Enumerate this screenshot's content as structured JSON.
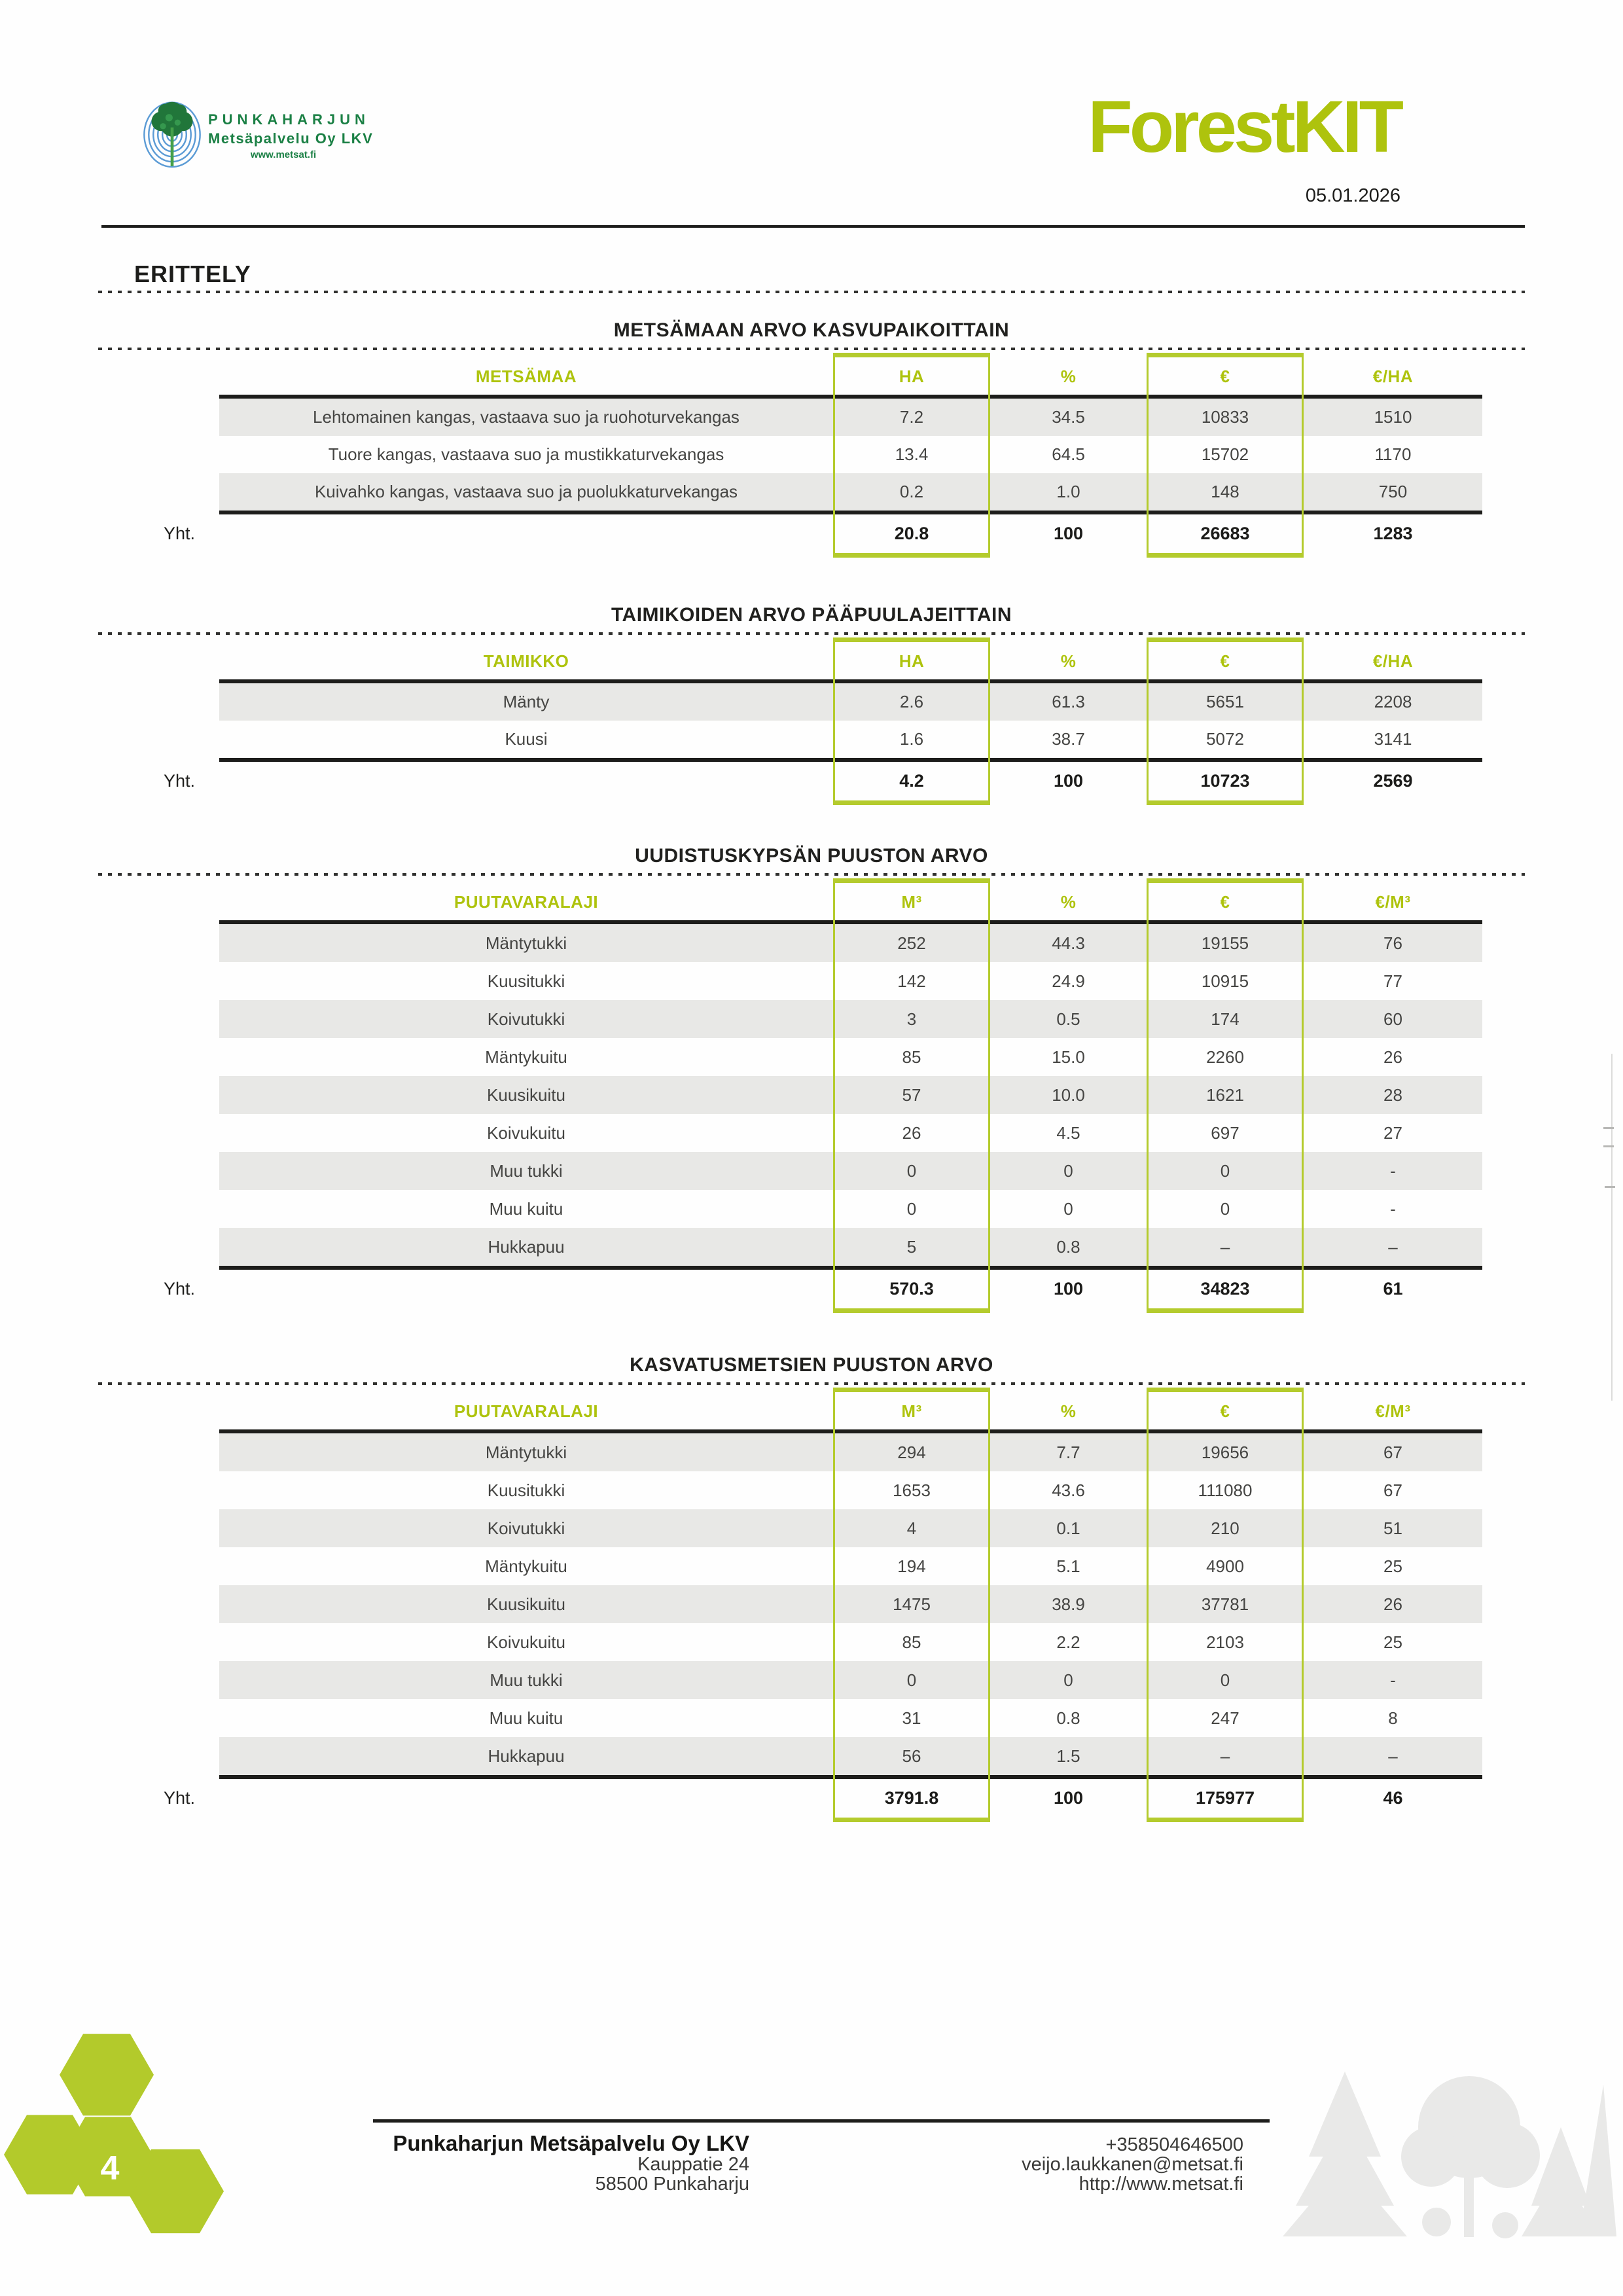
{
  "header": {
    "company_logo": {
      "name": "PUNKAHARJUN",
      "subtitle": "Metsäpalvelu Oy LKV",
      "url": "www.metsat.fi"
    },
    "brand": "ForestKIT",
    "date": "05.01.2026"
  },
  "page_heading": "ERITTELY",
  "sections": [
    {
      "title": "METSÄMAAN ARVO KASVUPAIKOITTAIN",
      "columns": [
        "METSÄMAA",
        "HA",
        "%",
        "€",
        "€/HA"
      ],
      "rows": [
        [
          "Lehtomainen kangas, vastaava suo ja ruohoturvekangas",
          "7.2",
          "34.5",
          "10833",
          "1510"
        ],
        [
          "Tuore kangas, vastaava suo ja mustikkaturvekangas",
          "13.4",
          "64.5",
          "15702",
          "1170"
        ],
        [
          "Kuivahko kangas, vastaava suo ja puolukkaturvekangas",
          "0.2",
          "1.0",
          "148",
          "750"
        ]
      ],
      "total_label": "Yht.",
      "totals": [
        "20.8",
        "100",
        "26683",
        "1283"
      ]
    },
    {
      "title": "TAIMIKOIDEN ARVO PÄÄPUULAJEITTAIN",
      "columns": [
        "TAIMIKKO",
        "HA",
        "%",
        "€",
        "€/HA"
      ],
      "rows": [
        [
          "Mänty",
          "2.6",
          "61.3",
          "5651",
          "2208"
        ],
        [
          "Kuusi",
          "1.6",
          "38.7",
          "5072",
          "3141"
        ]
      ],
      "total_label": "Yht.",
      "totals": [
        "4.2",
        "100",
        "10723",
        "2569"
      ]
    },
    {
      "title": "UUDISTUSKYPSÄN PUUSTON ARVO",
      "columns": [
        "PUUTAVARALAJI",
        "M³",
        "%",
        "€",
        "€/M³"
      ],
      "rows": [
        [
          "Mäntytukki",
          "252",
          "44.3",
          "19155",
          "76"
        ],
        [
          "Kuusitukki",
          "142",
          "24.9",
          "10915",
          "77"
        ],
        [
          "Koivutukki",
          "3",
          "0.5",
          "174",
          "60"
        ],
        [
          "Mäntykuitu",
          "85",
          "15.0",
          "2260",
          "26"
        ],
        [
          "Kuusikuitu",
          "57",
          "10.0",
          "1621",
          "28"
        ],
        [
          "Koivukuitu",
          "26",
          "4.5",
          "697",
          "27"
        ],
        [
          "Muu tukki",
          "0",
          "0",
          "0",
          "-"
        ],
        [
          "Muu kuitu",
          "0",
          "0",
          "0",
          "-"
        ],
        [
          "Hukkapuu",
          "5",
          "0.8",
          "–",
          "–"
        ]
      ],
      "total_label": "Yht.",
      "totals": [
        "570.3",
        "100",
        "34823",
        "61"
      ]
    },
    {
      "title": "KASVATUSMETSIEN PUUSTON ARVO",
      "columns": [
        "PUUTAVARALAJI",
        "M³",
        "%",
        "€",
        "€/M³"
      ],
      "rows": [
        [
          "Mäntytukki",
          "294",
          "7.7",
          "19656",
          "67"
        ],
        [
          "Kuusitukki",
          "1653",
          "43.6",
          "111080",
          "67"
        ],
        [
          "Koivutukki",
          "4",
          "0.1",
          "210",
          "51"
        ],
        [
          "Mäntykuitu",
          "194",
          "5.1",
          "4900",
          "25"
        ],
        [
          "Kuusikuitu",
          "1475",
          "38.9",
          "37781",
          "26"
        ],
        [
          "Koivukuitu",
          "85",
          "2.2",
          "2103",
          "25"
        ],
        [
          "Muu tukki",
          "0",
          "0",
          "0",
          "-"
        ],
        [
          "Muu kuitu",
          "31",
          "0.8",
          "247",
          "8"
        ],
        [
          "Hukkapuu",
          "56",
          "1.5",
          "–",
          "–"
        ]
      ],
      "total_label": "Yht.",
      "totals": [
        "3791.8",
        "100",
        "175977",
        "46"
      ]
    }
  ],
  "footer": {
    "company": "Punkaharjun Metsäpalvelu Oy LKV",
    "address_line1": "Kauppatie 24",
    "address_line2": "58500 Punkaharju",
    "phone": "+358504646500",
    "email": "veijo.laukkanen@metsat.fi",
    "website": "http://www.metsat.fi"
  },
  "page_number": "4",
  "colors": {
    "accent": "#aec30d",
    "accent_soft": "#b4cb2d",
    "dark_green": "#1b8045",
    "ink": "#1d1d1b",
    "row_shade": "#e8e8e6"
  }
}
